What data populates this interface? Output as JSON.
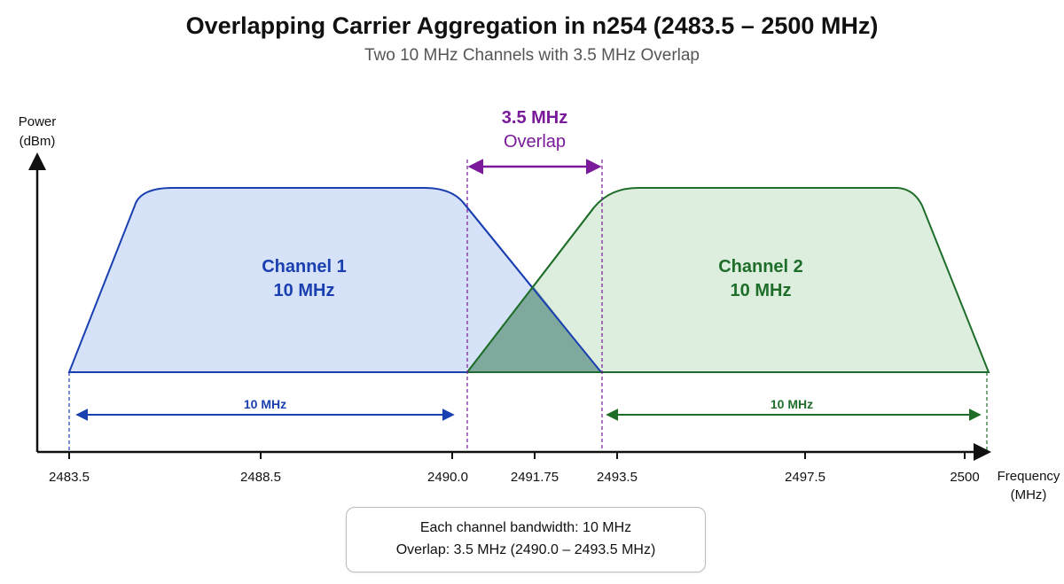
{
  "title": "Overlapping Carrier Aggregation in n254 (2483.5 – 2500 MHz)",
  "subtitle": "Two 10 MHz Channels with 3.5 MHz Overlap",
  "y_axis": {
    "label_line1": "Power",
    "label_line2": "(dBm)"
  },
  "x_axis": {
    "label_line1": "Frequency",
    "label_line2": "(MHz)"
  },
  "ticks": [
    {
      "label": "2483.5"
    },
    {
      "label": "2488.5"
    },
    {
      "label": "2490.0"
    },
    {
      "label": "2491.75"
    },
    {
      "label": "2493.5"
    },
    {
      "label": "2497.5"
    },
    {
      "label": "2500"
    }
  ],
  "overlap": {
    "label_line1": "3.5 MHz",
    "label_line2": "Overlap"
  },
  "channel1": {
    "name": "Channel 1",
    "bandwidth": "10 MHz",
    "span_label": "10 MHz"
  },
  "channel2": {
    "name": "Channel 2",
    "bandwidth": "10 MHz",
    "span_label": "10 MHz"
  },
  "colors": {
    "channel1": "#1a3fb0",
    "channel1_fill": "#d6e2f7",
    "channel2": "#1e6e2a",
    "channel2_fill": "#d9ecdb",
    "overlap": "#7a1a9a",
    "overlap_fill": "#6e9e92"
  },
  "note": {
    "line1": "Each channel bandwidth: 10 MHz",
    "line2": "Overlap: 3.5 MHz (2490.0 – 2493.5 MHz)"
  }
}
